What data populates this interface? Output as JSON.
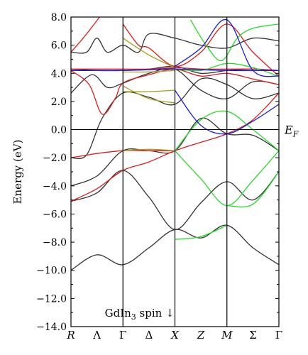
{
  "chart_data": {
    "type": "line",
    "ylabel": "Energy (eV)",
    "ylim": [
      -14.0,
      8.0
    ],
    "yticks": [
      {
        "value": 8.0,
        "label": "8.0"
      },
      {
        "value": 6.0,
        "label": "6.0"
      },
      {
        "value": 4.0,
        "label": "4.0"
      },
      {
        "value": 2.0,
        "label": "2.0"
      },
      {
        "value": 0.0,
        "label": "0.0"
      },
      {
        "value": -2.0,
        "label": "−2.0"
      },
      {
        "value": -4.0,
        "label": "−4.0"
      },
      {
        "value": -6.0,
        "label": "−6.0"
      },
      {
        "value": -8.0,
        "label": "−8.0"
      },
      {
        "value": -10.0,
        "label": "−10.0"
      },
      {
        "value": -12.0,
        "label": "−12.0"
      },
      {
        "value": -14.0,
        "label": "−14.0"
      }
    ],
    "kpoints": [
      {
        "label": "R",
        "x": 0,
        "italic": true,
        "vline": false
      },
      {
        "label": "Λ",
        "x": 0.5,
        "italic": false,
        "vline": false
      },
      {
        "label": "Γ",
        "x": 1,
        "italic": false,
        "vline": true
      },
      {
        "label": "Δ",
        "x": 1.5,
        "italic": false,
        "vline": false
      },
      {
        "label": "X",
        "x": 2,
        "italic": true,
        "vline": true
      },
      {
        "label": "Z",
        "x": 2.5,
        "italic": true,
        "vline": false
      },
      {
        "label": "M",
        "x": 3,
        "italic": true,
        "vline": true
      },
      {
        "label": "Σ",
        "x": 3.5,
        "italic": false,
        "vline": false
      },
      {
        "label": "Γ",
        "x": 4,
        "italic": false,
        "vline": false
      }
    ],
    "xlim": [
      0,
      4
    ],
    "fermi_level": {
      "value": 0.0,
      "label": "E",
      "label_sub": "F"
    },
    "annotation": {
      "text": "GdIn",
      "sub": "3",
      "suffix": " spin ↓"
    },
    "colors": {
      "black": "#333333",
      "red": "#e01b1b",
      "green": "#22dd22",
      "blue": "#1a1ae6",
      "olive": "#a8a21e"
    },
    "series": [
      {
        "color": "black",
        "points": [
          [
            0,
            -10.0
          ],
          [
            0.5,
            -8.9
          ],
          [
            1,
            -9.6
          ],
          [
            1.5,
            -8.4
          ],
          [
            2,
            -7.1
          ],
          [
            2.5,
            -7.7
          ],
          [
            3,
            -6.8
          ],
          [
            3.5,
            -8.4
          ],
          [
            4,
            -9.6
          ]
        ]
      },
      {
        "color": "black",
        "points": [
          [
            0,
            -5.1
          ],
          [
            0.5,
            -4.5
          ],
          [
            1,
            -2.9
          ],
          [
            1.5,
            -4.8
          ],
          [
            2,
            -7.1
          ],
          [
            2.5,
            -5.2
          ],
          [
            3,
            -3.7
          ],
          [
            3.5,
            -5.0
          ],
          [
            4,
            -3.0
          ]
        ]
      },
      {
        "color": "black",
        "points": [
          [
            0,
            -4.0
          ],
          [
            0.5,
            -3.3
          ],
          [
            1,
            -1.5
          ],
          [
            1.5,
            -1.5
          ],
          [
            2,
            -1.5
          ],
          [
            2.5,
            0.8
          ],
          [
            3,
            -0.3
          ],
          [
            3.5,
            -0.4
          ],
          [
            4,
            -1.5
          ]
        ]
      },
      {
        "color": "black",
        "points": [
          [
            0,
            -2.0
          ],
          [
            0.3,
            -1.8
          ],
          [
            0.6,
            0.8
          ],
          [
            1,
            2.6
          ],
          [
            1.5,
            2.3
          ],
          [
            2,
            1.8
          ],
          [
            2.5,
            3.6
          ],
          [
            3,
            3.2
          ],
          [
            3.5,
            2.2
          ],
          [
            4,
            2.6
          ]
        ]
      },
      {
        "color": "black",
        "points": [
          [
            0,
            2.6
          ],
          [
            0.4,
            3.9
          ],
          [
            0.7,
            3.0
          ],
          [
            1,
            3.3
          ],
          [
            1.5,
            4.0
          ],
          [
            2,
            4.3
          ],
          [
            2.5,
            2.8
          ],
          [
            3,
            2.2
          ],
          [
            3.5,
            3.4
          ],
          [
            4,
            3.2
          ]
        ]
      },
      {
        "color": "black",
        "points": [
          [
            0,
            4.3
          ],
          [
            0.5,
            4.2
          ],
          [
            1,
            4.2
          ],
          [
            1.5,
            4.3
          ],
          [
            2,
            4.5
          ],
          [
            2.5,
            4.0
          ],
          [
            3,
            4.2
          ],
          [
            3.5,
            4.3
          ],
          [
            4,
            4.2
          ]
        ]
      },
      {
        "color": "black",
        "points": [
          [
            0,
            5.5
          ],
          [
            0.3,
            5.5
          ],
          [
            0.5,
            6.5
          ],
          [
            0.7,
            5.5
          ],
          [
            1,
            6.0
          ],
          [
            1.3,
            5.5
          ],
          [
            1.5,
            6.8
          ],
          [
            2,
            6.5
          ],
          [
            2.5,
            6.0
          ],
          [
            3,
            5.8
          ],
          [
            3.5,
            6.5
          ],
          [
            4,
            6.3
          ]
        ]
      },
      {
        "color": "red",
        "points": [
          [
            0,
            -5.1
          ],
          [
            0.5,
            -4.2
          ],
          [
            1,
            -2.9
          ],
          [
            1.5,
            -2.3
          ],
          [
            2,
            -1.5
          ],
          [
            2.5,
            -0.9
          ],
          [
            3,
            -0.3
          ],
          [
            3.5,
            0.7
          ],
          [
            4,
            2.6
          ]
        ]
      },
      {
        "color": "red",
        "points": [
          [
            0,
            -2.0
          ],
          [
            0.5,
            -1.7
          ],
          [
            1,
            -1.5
          ],
          [
            1.5,
            -1.5
          ],
          [
            2,
            -1.5
          ]
        ]
      },
      {
        "color": "red",
        "points": [
          [
            0,
            4.2
          ],
          [
            0.35,
            3.2
          ],
          [
            0.6,
            1.1
          ],
          [
            0.85,
            2.2
          ],
          [
            1,
            3.3
          ],
          [
            1.5,
            3.9
          ],
          [
            2,
            4.3
          ],
          [
            2.5,
            3.8
          ],
          [
            3,
            4.0
          ],
          [
            3.5,
            3.6
          ],
          [
            4,
            3.2
          ]
        ]
      },
      {
        "color": "red",
        "points": [
          [
            0,
            4.3
          ],
          [
            0.5,
            4.3
          ],
          [
            1,
            4.3
          ],
          [
            1.5,
            4.3
          ],
          [
            2,
            4.4
          ],
          [
            2.5,
            4.3
          ],
          [
            3,
            4.3
          ],
          [
            3.5,
            4.3
          ],
          [
            4,
            4.2
          ]
        ]
      },
      {
        "color": "red",
        "points": [
          [
            0,
            5.5
          ],
          [
            0.3,
            6.8
          ],
          [
            0.55,
            8.0
          ]
        ]
      },
      {
        "color": "red",
        "points": [
          [
            1,
            7.5
          ],
          [
            1.3,
            6.0
          ],
          [
            1.5,
            5.8
          ],
          [
            2,
            4.5
          ],
          [
            2.5,
            5.5
          ],
          [
            3,
            7.5
          ],
          [
            3.5,
            5.5
          ],
          [
            4,
            3.8
          ]
        ]
      },
      {
        "color": "green",
        "points": [
          [
            2,
            -1.5
          ],
          [
            2.5,
            -3.5
          ],
          [
            3,
            -5.4
          ],
          [
            3.5,
            -3.6
          ],
          [
            4,
            -1.5
          ]
        ]
      },
      {
        "color": "green",
        "points": [
          [
            2,
            -7.8
          ],
          [
            2.5,
            -7.6
          ],
          [
            3,
            -6.8
          ]
        ]
      },
      {
        "color": "green",
        "points": [
          [
            3,
            -5.4
          ],
          [
            3.5,
            -5.3
          ],
          [
            4,
            -3.0
          ]
        ]
      },
      {
        "color": "green",
        "points": [
          [
            2,
            -1.5
          ],
          [
            2.5,
            0.7
          ],
          [
            3,
            1.3
          ],
          [
            3.5,
            0.0
          ],
          [
            4,
            -1.5
          ]
        ]
      },
      {
        "color": "green",
        "points": [
          [
            2,
            4.3
          ],
          [
            2.5,
            4.2
          ],
          [
            3,
            4.7
          ],
          [
            3.5,
            4.4
          ],
          [
            4,
            3.8
          ]
        ]
      },
      {
        "color": "green",
        "points": [
          [
            2.3,
            7.8
          ],
          [
            2.6,
            6.0
          ],
          [
            2.9,
            4.9
          ],
          [
            3.2,
            6.5
          ],
          [
            3.5,
            7.2
          ],
          [
            4,
            7.5
          ]
        ]
      },
      {
        "color": "blue",
        "points": [
          [
            0,
            4.2
          ],
          [
            1,
            4.2
          ],
          [
            2,
            4.3
          ],
          [
            3,
            4.2
          ],
          [
            4,
            4.2
          ]
        ]
      },
      {
        "color": "blue",
        "points": [
          [
            2,
            2.8
          ],
          [
            2.5,
            0.3
          ],
          [
            3,
            -0.3
          ],
          [
            3.5,
            0.6
          ],
          [
            4,
            1.8
          ]
        ]
      },
      {
        "color": "blue",
        "points": [
          [
            2,
            4.5
          ],
          [
            2.5,
            5.8
          ],
          [
            3,
            7.8
          ],
          [
            3.5,
            4.2
          ],
          [
            4,
            3.8
          ]
        ]
      },
      {
        "color": "olive",
        "points": [
          [
            1,
            -1.5
          ],
          [
            1.5,
            -1.4
          ],
          [
            2,
            -1.5
          ]
        ]
      },
      {
        "color": "olive",
        "points": [
          [
            1,
            2.7
          ],
          [
            1.5,
            2.7
          ],
          [
            2,
            2.8
          ]
        ]
      },
      {
        "color": "olive",
        "points": [
          [
            1,
            3.1
          ],
          [
            1.5,
            2.2
          ],
          [
            2,
            1.9
          ]
        ]
      },
      {
        "color": "olive",
        "points": [
          [
            1,
            4.1
          ],
          [
            1.5,
            4.1
          ],
          [
            2,
            4.2
          ]
        ]
      },
      {
        "color": "olive",
        "points": [
          [
            1,
            6.5
          ],
          [
            1.5,
            5.3
          ],
          [
            2,
            4.4
          ]
        ]
      }
    ]
  }
}
